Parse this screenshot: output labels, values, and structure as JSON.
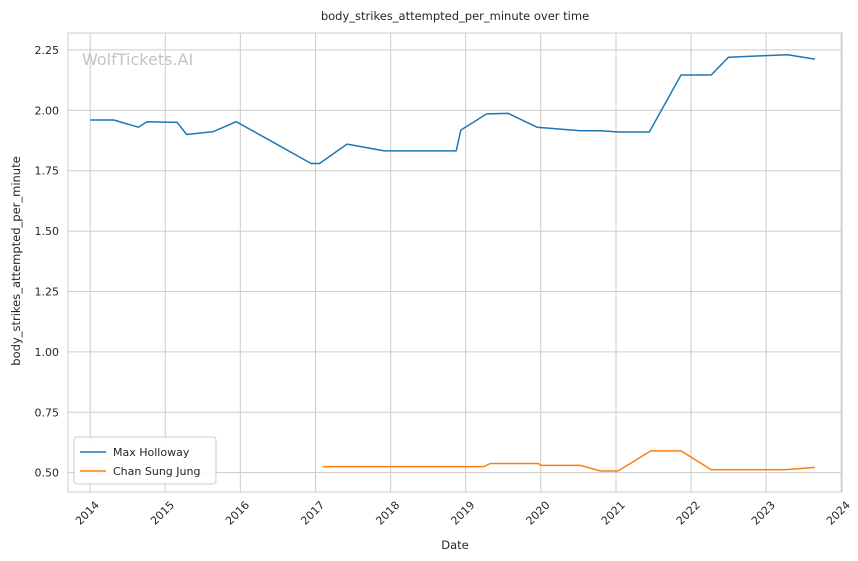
{
  "chart_data": {
    "type": "line",
    "title": "body_strikes_attempted_per_minute over time",
    "xlabel": "Date",
    "ylabel": "body_strikes_attempted_per_minute",
    "watermark": "WolfTickets.AI",
    "xlim": [
      "2013-09-15",
      "2024-01-05"
    ],
    "ylim": [
      0.42,
      2.32
    ],
    "x_ticks": [
      "2014",
      "2015",
      "2016",
      "2017",
      "2018",
      "2019",
      "2020",
      "2021",
      "2022",
      "2023",
      "2024"
    ],
    "y_ticks": [
      "0.50",
      "0.75",
      "1.00",
      "1.25",
      "1.50",
      "1.75",
      "2.00",
      "2.25"
    ],
    "grid": true,
    "legend": "lower-left",
    "series": [
      {
        "name": "Max Holloway",
        "color": "#1f77b4",
        "x": [
          "2014-01-01",
          "2014-04-26",
          "2014-08-23",
          "2014-10-04",
          "2015-02-28",
          "2015-04-15",
          "2015-08-23",
          "2015-12-12",
          "2016-06-04",
          "2016-12-10",
          "2017-01-20",
          "2017-06-03",
          "2017-12-02",
          "2018-11-16",
          "2018-12-08",
          "2019-04-13",
          "2019-07-27",
          "2019-12-14",
          "2020-07-11",
          "2020-10-15",
          "2021-01-16",
          "2021-06-12",
          "2021-11-13",
          "2022-04-09",
          "2022-07-02",
          "2023-01-15",
          "2023-04-15",
          "2023-08-26"
        ],
        "y": [
          1.96,
          1.96,
          1.93,
          1.953,
          1.95,
          1.9,
          1.912,
          1.953,
          1.87,
          1.78,
          1.78,
          1.86,
          1.832,
          1.832,
          1.918,
          1.985,
          1.987,
          1.93,
          1.915,
          1.915,
          1.91,
          1.91,
          2.146,
          2.146,
          2.22,
          2.227,
          2.23,
          2.212
        ]
      },
      {
        "name": "Chan Sung Jung",
        "color": "#ff7f0e",
        "x": [
          "2017-02-04",
          "2019-03-30",
          "2019-05-01",
          "2019-12-21",
          "2020-01-01",
          "2020-07-11",
          "2020-10-17",
          "2021-01-10",
          "2021-06-19",
          "2021-11-13",
          "2022-04-09",
          "2023-04-01",
          "2023-08-26"
        ],
        "y": [
          0.525,
          0.525,
          0.538,
          0.538,
          0.53,
          0.53,
          0.507,
          0.507,
          0.59,
          0.59,
          0.512,
          0.512,
          0.522
        ]
      }
    ]
  }
}
